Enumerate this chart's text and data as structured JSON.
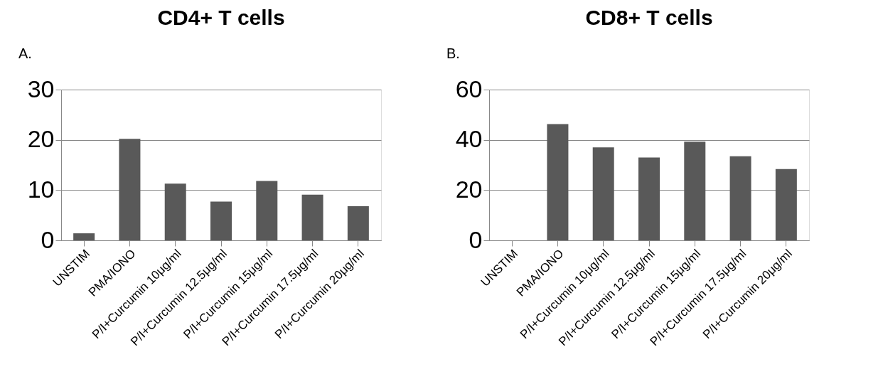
{
  "chart_data": [
    {
      "type": "bar",
      "title": "CD4+ T cells",
      "annotations": [
        "A."
      ],
      "categories": [
        "UNSTIM",
        "PMA/IONO",
        "P/I+Curcumin 10μg/ml",
        "P/I+Curcumin 12.5μg/ml",
        "P/I+Curcumin 15μg/ml",
        "P/I+Curcumin 17.5μg/ml",
        "P/I+Curcumin 20μg/ml"
      ],
      "series": [
        {
          "color": "#595959",
          "values": [
            1.4,
            20.2,
            11.3,
            7.7,
            11.8,
            9.1,
            6.8
          ]
        }
      ],
      "ylim": [
        0,
        30
      ],
      "yticks": [
        0,
        10,
        20,
        30
      ],
      "grid": "y",
      "legend": false
    },
    {
      "type": "bar",
      "title": "CD8+ T cells",
      "annotations": [
        "B."
      ],
      "categories": [
        "UNSTIM",
        "PMA/IONO",
        "P/I+Curcumin 10μg/ml",
        "P/I+Curcumin 12.5μg/ml",
        "P/I+Curcumin 15μg/ml",
        "P/I+Curcumin 17.5μg/ml",
        "P/I+Curcumin 20μg/ml"
      ],
      "series": [
        {
          "color": "#595959",
          "values": [
            0,
            46.3,
            37,
            33,
            39.3,
            33.5,
            28.4
          ]
        }
      ],
      "ylim": [
        0,
        60
      ],
      "yticks": [
        0,
        20,
        40,
        60
      ],
      "grid": "y",
      "legend": false
    }
  ]
}
